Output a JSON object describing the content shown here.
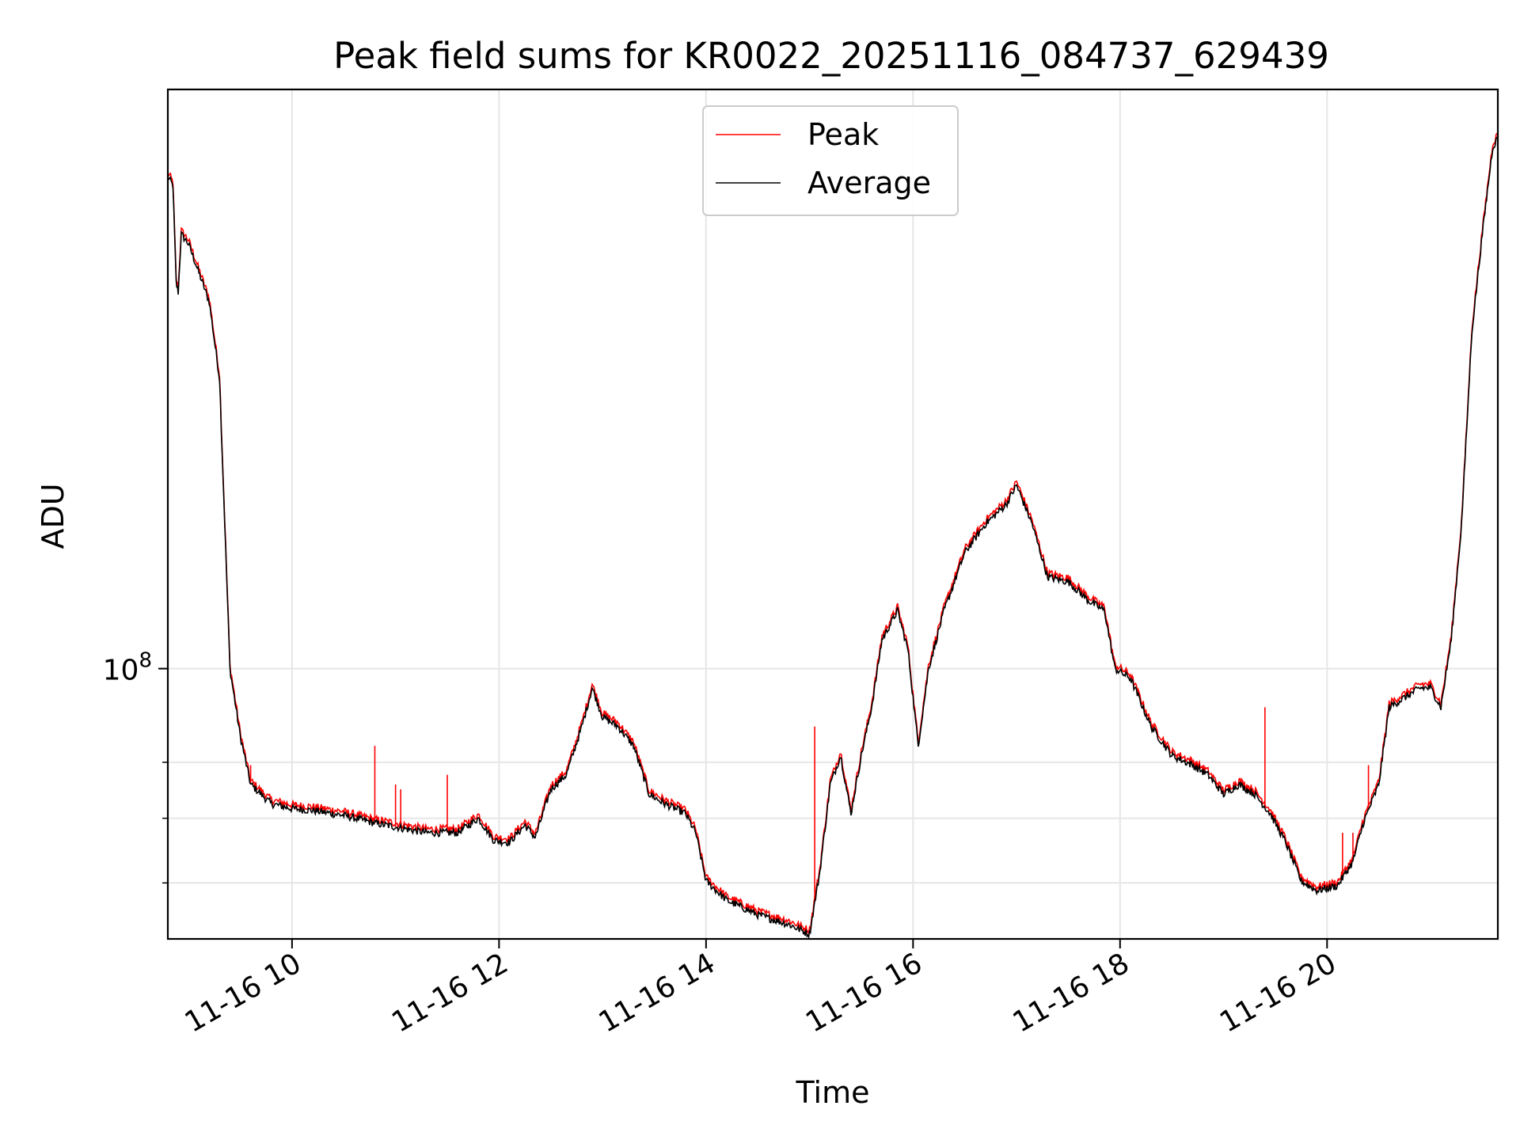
{
  "chart_data": {
    "type": "line",
    "title": "Peak field sums for KR0022_20251116_084737_629439",
    "xlabel": "Time",
    "ylabel": "ADU",
    "x_unit": "hours since 2025-11-16 00:00",
    "xlim": [
      8.8,
      21.65
    ],
    "ylim_log10": [
      7.72,
      8.6
    ],
    "y_scale": "log",
    "grid": true,
    "legend_position": "upper center",
    "x_ticks": [
      {
        "value": 10,
        "label": "11-16 10"
      },
      {
        "value": 12,
        "label": "11-16 12"
      },
      {
        "value": 14,
        "label": "11-16 14"
      },
      {
        "value": 16,
        "label": "11-16 16"
      },
      {
        "value": 18,
        "label": "11-16 18"
      },
      {
        "value": 20,
        "label": "11-16 20"
      }
    ],
    "y_major_tick": {
      "value_log10": 8,
      "base": "10",
      "exponent": "8"
    },
    "y_minor_ticks_log10": [
      7.778,
      7.845,
      7.903
    ],
    "series": [
      {
        "name": "Peak",
        "color": "#ff0000"
      },
      {
        "name": "Average",
        "color": "#000000"
      }
    ],
    "average_points": [
      [
        8.8,
        8.51
      ],
      [
        8.85,
        8.5
      ],
      [
        8.88,
        8.4
      ],
      [
        8.9,
        8.39
      ],
      [
        8.93,
        8.45
      ],
      [
        9.0,
        8.44
      ],
      [
        9.1,
        8.41
      ],
      [
        9.2,
        8.38
      ],
      [
        9.3,
        8.3
      ],
      [
        9.4,
        8.0
      ],
      [
        9.5,
        7.93
      ],
      [
        9.6,
        7.88
      ],
      [
        9.8,
        7.86
      ],
      [
        10.0,
        7.855
      ],
      [
        10.2,
        7.853
      ],
      [
        10.5,
        7.848
      ],
      [
        10.8,
        7.84
      ],
      [
        11.0,
        7.836
      ],
      [
        11.3,
        7.83
      ],
      [
        11.6,
        7.83
      ],
      [
        11.8,
        7.845
      ],
      [
        11.95,
        7.822
      ],
      [
        12.1,
        7.82
      ],
      [
        12.25,
        7.838
      ],
      [
        12.35,
        7.825
      ],
      [
        12.5,
        7.875
      ],
      [
        12.65,
        7.89
      ],
      [
        12.8,
        7.94
      ],
      [
        12.9,
        7.98
      ],
      [
        13.0,
        7.95
      ],
      [
        13.15,
        7.94
      ],
      [
        13.3,
        7.92
      ],
      [
        13.45,
        7.87
      ],
      [
        13.6,
        7.86
      ],
      [
        13.8,
        7.85
      ],
      [
        13.9,
        7.83
      ],
      [
        14.0,
        7.78
      ],
      [
        14.2,
        7.76
      ],
      [
        14.5,
        7.745
      ],
      [
        14.8,
        7.735
      ],
      [
        15.0,
        7.725
      ],
      [
        15.1,
        7.79
      ],
      [
        15.2,
        7.88
      ],
      [
        15.3,
        7.91
      ],
      [
        15.4,
        7.85
      ],
      [
        15.5,
        7.91
      ],
      [
        15.6,
        7.96
      ],
      [
        15.7,
        8.03
      ],
      [
        15.85,
        8.06
      ],
      [
        15.95,
        8.02
      ],
      [
        16.05,
        7.92
      ],
      [
        16.15,
        8.0
      ],
      [
        16.3,
        8.06
      ],
      [
        16.5,
        8.12
      ],
      [
        16.7,
        8.15
      ],
      [
        16.9,
        8.17
      ],
      [
        17.0,
        8.19
      ],
      [
        17.15,
        8.15
      ],
      [
        17.3,
        8.095
      ],
      [
        17.5,
        8.09
      ],
      [
        17.7,
        8.07
      ],
      [
        17.85,
        8.06
      ],
      [
        17.95,
        8.0
      ],
      [
        18.1,
        7.99
      ],
      [
        18.3,
        7.94
      ],
      [
        18.5,
        7.91
      ],
      [
        18.7,
        7.9
      ],
      [
        18.85,
        7.89
      ],
      [
        19.0,
        7.87
      ],
      [
        19.15,
        7.88
      ],
      [
        19.3,
        7.87
      ],
      [
        19.45,
        7.85
      ],
      [
        19.6,
        7.82
      ],
      [
        19.75,
        7.78
      ],
      [
        19.9,
        7.77
      ],
      [
        20.1,
        7.775
      ],
      [
        20.25,
        7.8
      ],
      [
        20.35,
        7.84
      ],
      [
        20.5,
        7.88
      ],
      [
        20.6,
        7.96
      ],
      [
        20.75,
        7.97
      ],
      [
        20.9,
        7.98
      ],
      [
        21.0,
        7.98
      ],
      [
        21.1,
        7.96
      ],
      [
        21.2,
        8.03
      ],
      [
        21.3,
        8.15
      ],
      [
        21.4,
        8.35
      ],
      [
        21.5,
        8.45
      ],
      [
        21.6,
        8.54
      ],
      [
        21.65,
        8.55
      ]
    ],
    "peak_spikes": [
      [
        9.54,
        7.91
      ],
      [
        9.6,
        7.9
      ],
      [
        10.04,
        7.86
      ],
      [
        10.8,
        7.92
      ],
      [
        11.0,
        7.88
      ],
      [
        11.05,
        7.875
      ],
      [
        11.5,
        7.89
      ],
      [
        15.05,
        7.94
      ],
      [
        19.4,
        7.96
      ],
      [
        20.15,
        7.83
      ],
      [
        20.25,
        7.83
      ],
      [
        20.4,
        7.9
      ]
    ]
  }
}
